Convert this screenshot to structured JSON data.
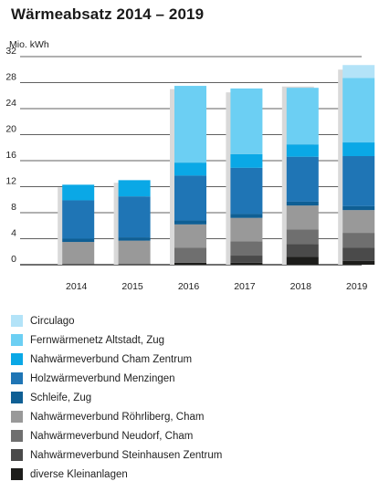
{
  "chart_data": {
    "type": "bar",
    "stacked": true,
    "title": "Wärmeabsatz 2014 – 2019",
    "ylabel": "Mio. kWh",
    "xlabel": "",
    "ylim": [
      0,
      32
    ],
    "yticks": [
      0,
      4,
      8,
      12,
      16,
      20,
      24,
      28,
      32
    ],
    "grid": true,
    "legend_position": "bottom",
    "categories": [
      "2014",
      "2015",
      "2016",
      "2017",
      "2018",
      "2019"
    ],
    "background_totals": [
      11.9,
      12.6,
      27.0,
      26.5,
      27.4,
      30.0
    ],
    "series": [
      {
        "name": "diverse Kleinanlagen",
        "color": "#1d1d1b",
        "values": [
          0.1,
          0.1,
          0.3,
          0.3,
          1.2,
          0.6
        ]
      },
      {
        "name": "Nahwärmeverbund Steinhausen Zentrum",
        "color": "#4a4a4a",
        "values": [
          0.0,
          0.0,
          0.0,
          1.1,
          2.0,
          2.0
        ]
      },
      {
        "name": "Nahwärmeverbund Neudorf, Cham",
        "color": "#6f6f6f",
        "values": [
          0.0,
          0.0,
          2.3,
          2.2,
          2.2,
          2.3
        ]
      },
      {
        "name": "Nahwärmeverbund Röhrliberg, Cham",
        "color": "#999999",
        "values": [
          3.4,
          3.6,
          3.6,
          3.6,
          3.7,
          3.5
        ]
      },
      {
        "name": "Schleife, Zug",
        "color": "#0f5f94",
        "values": [
          0.5,
          0.5,
          0.6,
          0.6,
          0.6,
          0.6
        ]
      },
      {
        "name": "Holzwärmeverbund Menzingen",
        "color": "#1f75b5",
        "values": [
          5.9,
          6.3,
          6.9,
          7.1,
          6.9,
          7.7
        ]
      },
      {
        "name": "Nahwärmeverbund Cham Zentrum",
        "color": "#0aa8e6",
        "values": [
          2.4,
          2.5,
          2.0,
          2.1,
          1.9,
          2.1
        ]
      },
      {
        "name": "Fernwärmenetz Altstadt, Zug",
        "color": "#6ccff3",
        "values": [
          0.0,
          0.0,
          11.8,
          10.1,
          8.7,
          9.9
        ]
      },
      {
        "name": "Circulago",
        "color": "#b3e3f8",
        "values": [
          0.0,
          0.0,
          0.0,
          0.0,
          0.0,
          2.0
        ]
      }
    ],
    "background_color": "#d9d9d9"
  },
  "legend_order": [
    8,
    7,
    6,
    5,
    4,
    3,
    2,
    1,
    0
  ]
}
